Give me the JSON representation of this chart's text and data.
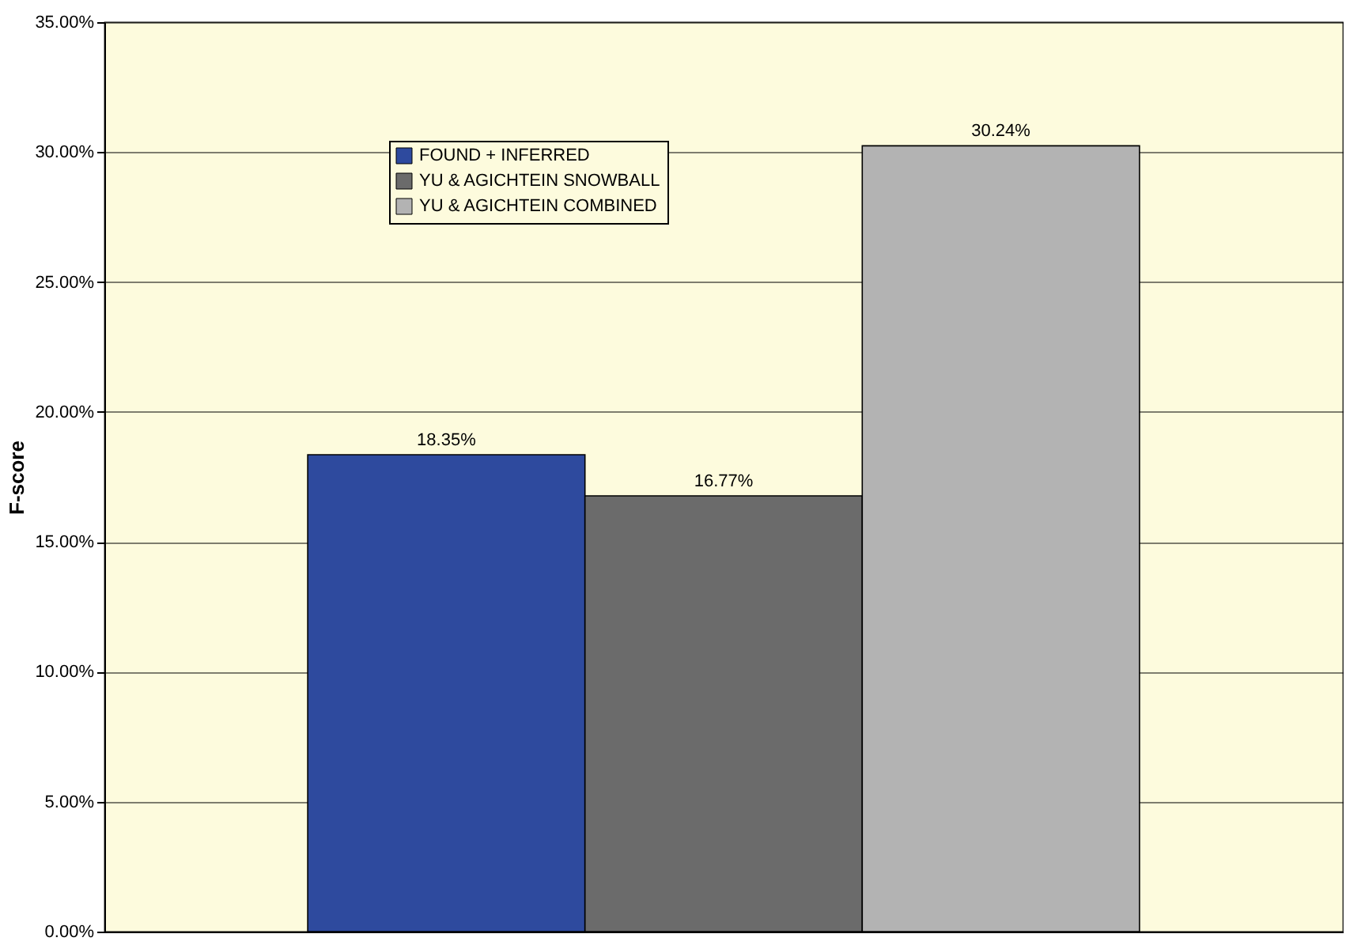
{
  "chart_data": {
    "type": "bar",
    "ylabel": "F-score",
    "categories": [
      null
    ],
    "series": [
      {
        "name": "FOUND + INFERRED",
        "color": "#2e4a9e",
        "values": [
          18.35
        ],
        "value_labels": [
          "18.35%"
        ]
      },
      {
        "name": "YU & AGICHTEIN SNOWBALL",
        "color": "#6b6b6b",
        "values": [
          16.77
        ],
        "value_labels": [
          "16.77%"
        ]
      },
      {
        "name": "YU & AGICHTEIN COMBINED",
        "color": "#b3b3b3",
        "values": [
          30.24
        ],
        "value_labels": [
          "30.24%"
        ]
      }
    ],
    "ylim": [
      0,
      35
    ],
    "yticks": [
      {
        "value": 0,
        "label": "0.00%"
      },
      {
        "value": 5,
        "label": "5.00%"
      },
      {
        "value": 10,
        "label": "10.00%"
      },
      {
        "value": 15,
        "label": "15.00%"
      },
      {
        "value": 20,
        "label": "20.00%"
      },
      {
        "value": 25,
        "label": "25.00%"
      },
      {
        "value": 30,
        "label": "30.00%"
      },
      {
        "value": 35,
        "label": "35.00%"
      }
    ],
    "grid": "y",
    "legend": "top left"
  }
}
